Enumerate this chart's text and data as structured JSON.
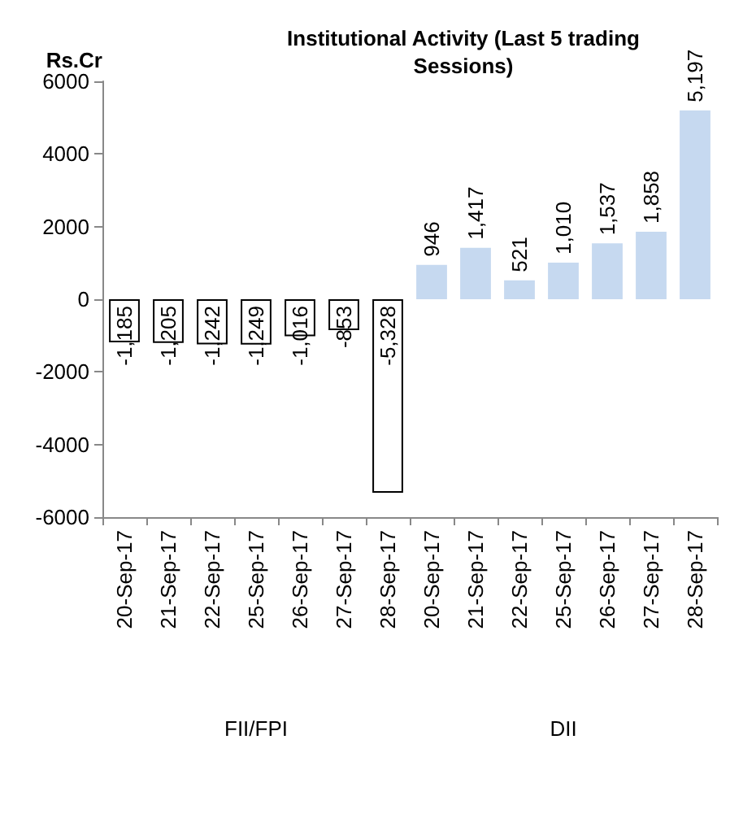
{
  "chart_data": {
    "type": "bar",
    "title": "Institutional Activity (Last 5 trading\nSessions)",
    "ylabel": "Rs.Cr",
    "categories": [
      "20-Sep-17",
      "21-Sep-17",
      "22-Sep-17",
      "25-Sep-17",
      "26-Sep-17",
      "27-Sep-17",
      "28-Sep-17",
      "20-Sep-17",
      "21-Sep-17",
      "22-Sep-17",
      "25-Sep-17",
      "26-Sep-17",
      "27-Sep-17",
      "28-Sep-17"
    ],
    "values": [
      -1185,
      -1205,
      -1242,
      -1249,
      -1016,
      -853,
      -5328,
      946,
      1417,
      521,
      1010,
      1537,
      1858,
      5197
    ],
    "value_labels": [
      "-1,185",
      "-1,205",
      "-1,242",
      "-1,249",
      "-1,016",
      "-853",
      "-5,328",
      "946",
      "1,417",
      "521",
      "1,010",
      "1,537",
      "1,858",
      "5,197"
    ],
    "colors": [
      "#ffffff",
      "#ffffff",
      "#ffffff",
      "#ffffff",
      "#ffffff",
      "#ffffff",
      "#ffffff",
      "#c6d9f0",
      "#c6d9f0",
      "#c6d9f0",
      "#c6d9f0",
      "#c6d9f0",
      "#c6d9f0",
      "#c6d9f0"
    ],
    "annotations": [
      "FII/FPI",
      "DII"
    ],
    "ylim": [
      -6000,
      6000
    ],
    "yticks": [
      -6000,
      -4000,
      -2000,
      0,
      2000,
      4000,
      6000
    ],
    "grid": false
  }
}
